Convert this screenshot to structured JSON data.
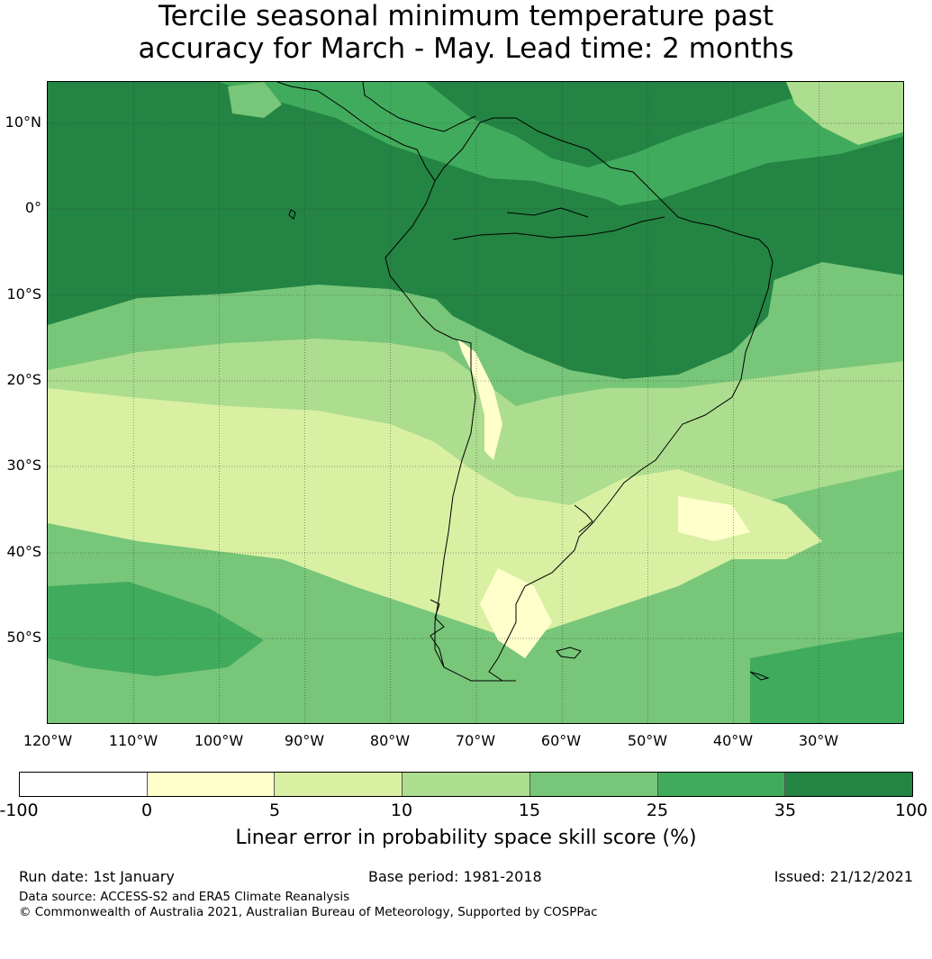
{
  "title": {
    "line1": "Tercile seasonal minimum temperature past",
    "line2": "accuracy for March - May. Lead time: 2 months"
  },
  "map": {
    "lat_labels": [
      "10°N",
      "0°",
      "10°S",
      "20°S",
      "30°S",
      "40°S",
      "50°S"
    ],
    "lon_labels": [
      "120°W",
      "110°W",
      "100°W",
      "90°W",
      "80°W",
      "70°W",
      "60°W",
      "50°W",
      "40°W",
      "30°W"
    ],
    "colors": {
      "ocean_base": "#4aa861",
      "land_base": "#238443",
      "band_light": "#d9f0a3",
      "band_mid": "#addd8e",
      "band_med": "#78c679",
      "band_dark": "#41ab5d",
      "coast": "#000000"
    }
  },
  "colorbar": {
    "ticks": [
      "-100",
      "0",
      "5",
      "10",
      "15",
      "25",
      "35",
      "100"
    ],
    "colors": [
      "#ffffff",
      "#ffffcc",
      "#d9f0a3",
      "#addd8e",
      "#78c679",
      "#41ab5d",
      "#238443"
    ],
    "label": "Linear error in probability space skill score (%)"
  },
  "footer": {
    "run_date": "Run date: 1st January",
    "base_period": "Base period: 1981-2018",
    "issued": "Issued: 21/12/2021",
    "data_source": "Data source: ACCESS-S2 and ERA5 Climate Reanalysis",
    "copyright": "© Commonwealth of Australia 2021, Australian Bureau of Meteorology, Supported by COSPPac"
  }
}
